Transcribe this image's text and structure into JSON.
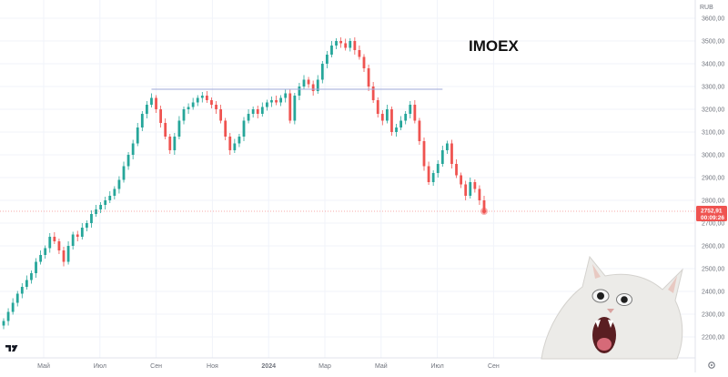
{
  "chart_data": {
    "type": "candlestick",
    "title": "IMOEX",
    "currency": "RUB",
    "last_price": "2752,91",
    "countdown": "00:09:26",
    "ylim": [
      2150,
      3600
    ],
    "yticks": [
      "3600,00",
      "3500,00",
      "3400,00",
      "3300,00",
      "3200,00",
      "3100,00",
      "3000,00",
      "2900,00",
      "2800,00",
      "2700,00",
      "2600,00",
      "2500,00",
      "2400,00",
      "2300,00",
      "2200,00"
    ],
    "yvalues": [
      3600,
      3500,
      3400,
      3300,
      3200,
      3100,
      3000,
      2900,
      2800,
      2700,
      2600,
      2500,
      2400,
      2300,
      2200
    ],
    "xticks": [
      "Май",
      "Июл",
      "Сен",
      "Ноя",
      "2024",
      "Мар",
      "Май",
      "Июл",
      "Сен"
    ],
    "xtick_bold": [
      false,
      false,
      false,
      false,
      true,
      false,
      false,
      false,
      false
    ],
    "horizontal_line": {
      "value": 3288,
      "from_index": 32,
      "to_index": 95
    },
    "closes": [
      2270,
      2310,
      2350,
      2390,
      2420,
      2450,
      2480,
      2530,
      2560,
      2590,
      2640,
      2620,
      2580,
      2530,
      2600,
      2650,
      2640,
      2680,
      2700,
      2740,
      2760,
      2780,
      2800,
      2820,
      2850,
      2890,
      2950,
      3000,
      3050,
      3120,
      3180,
      3220,
      3250,
      3200,
      3140,
      3080,
      3020,
      3080,
      3150,
      3200,
      3210,
      3230,
      3250,
      3260,
      3240,
      3220,
      3200,
      3150,
      3080,
      3020,
      3050,
      3080,
      3150,
      3180,
      3200,
      3180,
      3210,
      3230,
      3240,
      3230,
      3250,
      3270,
      3150,
      3260,
      3300,
      3330,
      3310,
      3280,
      3330,
      3400,
      3440,
      3480,
      3500,
      3490,
      3470,
      3500,
      3460,
      3430,
      3380,
      3300,
      3240,
      3180,
      3150,
      3200,
      3100,
      3120,
      3150,
      3180,
      3220,
      3150,
      3060,
      2950,
      2880,
      2920,
      2960,
      3020,
      3050,
      2960,
      2910,
      2870,
      2820,
      2880,
      2850,
      2800,
      2752
    ],
    "colors": {
      "up": "#26a69a",
      "down": "#ef5350",
      "line": "#9fa8da",
      "grid": "#f0f3fa",
      "price_badge": "#ef5350"
    }
  },
  "meme": {
    "icon": "screaming-cat-image"
  },
  "logo": {
    "icon": "tradingview-logo"
  },
  "settings": {
    "icon": "gear-icon"
  }
}
